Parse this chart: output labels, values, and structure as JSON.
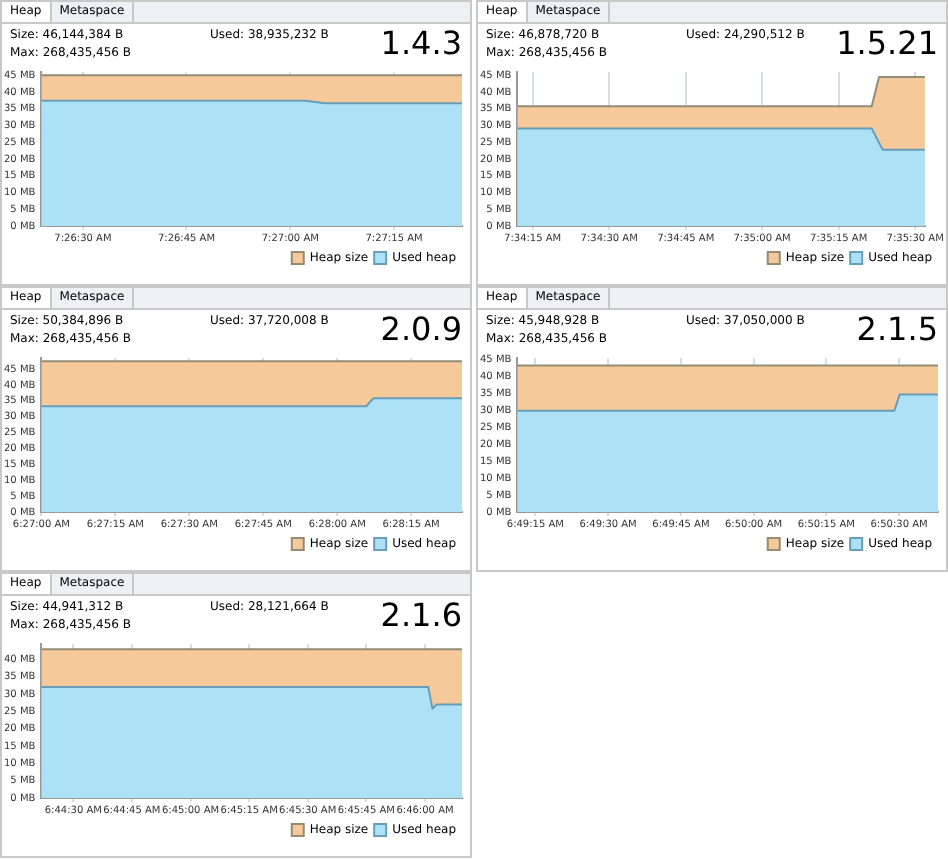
{
  "chart_data": [
    {
      "type": "area",
      "title": "1.4.3",
      "annotations": [
        "Heap",
        "Metaspace",
        "Size: 46,144,384 B",
        "Used: 38,935,232 B",
        "Max: 268,435,456 B"
      ],
      "series": [
        {
          "name": "Heap size",
          "color": "#f5c999",
          "x": [
            7.44,
            7.4569
          ],
          "values": [
            45,
            45
          ]
        },
        {
          "name": "Used heap",
          "color": "#ade1f6",
          "x": [
            7.44,
            7.4506,
            7.4514,
            7.4569
          ],
          "values": [
            37.4,
            37.4,
            36.7,
            36.7
          ]
        }
      ],
      "xlim": [
        7.44,
        7.4569
      ],
      "xticks": [
        {
          "value": 7.44167,
          "label": "7:26:30 AM"
        },
        {
          "value": 7.44583,
          "label": "7:26:45 AM"
        },
        {
          "value": 7.45,
          "label": "7:27:00 AM"
        },
        {
          "value": 7.45417,
          "label": "7:27:15 AM"
        }
      ],
      "ylim": [
        0,
        46
      ],
      "yticks": [
        {
          "value": 0,
          "label": "0 MB"
        },
        {
          "value": 5,
          "label": "5 MB"
        },
        {
          "value": 10,
          "label": "10 MB"
        },
        {
          "value": 15,
          "label": "15 MB"
        },
        {
          "value": 20,
          "label": "20 MB"
        },
        {
          "value": 25,
          "label": "25 MB"
        },
        {
          "value": 30,
          "label": "30 MB"
        },
        {
          "value": 35,
          "label": "35 MB"
        },
        {
          "value": 40,
          "label": "40 MB"
        },
        {
          "value": 45,
          "label": "45 MB"
        }
      ],
      "grid": "x",
      "legend": "bottom right"
    },
    {
      "type": "area",
      "title": "1.5.21",
      "annotations": [
        "Heap",
        "Metaspace",
        "Size: 46,878,720 B",
        "Used: 24,290,512 B",
        "Max: 268,435,456 B"
      ],
      "series": [
        {
          "name": "Heap size",
          "color": "#f5c999",
          "x": [
            7.57,
            7.5893,
            7.5897,
            7.5922
          ],
          "values": [
            35.8,
            35.8,
            44.5,
            44.5
          ]
        },
        {
          "name": "Used heap",
          "color": "#ade1f6",
          "x": [
            7.57,
            7.5893,
            7.5899,
            7.5922
          ],
          "values": [
            29.1,
            29.1,
            22.8,
            22.8
          ]
        }
      ],
      "xlim": [
        7.57,
        7.5922
      ],
      "xticks": [
        {
          "value": 7.57083,
          "label": "7:34:15 AM"
        },
        {
          "value": 7.575,
          "label": "7:34:30 AM"
        },
        {
          "value": 7.57917,
          "label": "7:34:45 AM"
        },
        {
          "value": 7.58333,
          "label": "7:35:00 AM"
        },
        {
          "value": 7.5875,
          "label": "7:35:15 AM"
        },
        {
          "value": 7.59167,
          "label": "7:35:30 AM"
        }
      ],
      "ylim": [
        0,
        46
      ],
      "yticks": [
        {
          "value": 0,
          "label": "0 MB"
        },
        {
          "value": 5,
          "label": "5 MB"
        },
        {
          "value": 10,
          "label": "10 MB"
        },
        {
          "value": 15,
          "label": "15 MB"
        },
        {
          "value": 20,
          "label": "20 MB"
        },
        {
          "value": 25,
          "label": "25 MB"
        },
        {
          "value": 30,
          "label": "30 MB"
        },
        {
          "value": 35,
          "label": "35 MB"
        },
        {
          "value": 40,
          "label": "40 MB"
        },
        {
          "value": 45,
          "label": "45 MB"
        }
      ],
      "grid": "x",
      "legend": "bottom right"
    },
    {
      "type": "area",
      "title": "2.0.9",
      "annotations": [
        "Heap",
        "Metaspace",
        "Size: 50,384,896 B",
        "Used: 37,720,008 B",
        "Max: 268,435,456 B"
      ],
      "series": [
        {
          "name": "Heap size",
          "color": "#f5c999",
          "x": [
            6.45,
            6.4737
          ],
          "values": [
            47.5,
            47.5
          ]
        },
        {
          "name": "Used heap",
          "color": "#ade1f6",
          "x": [
            6.45,
            6.4683,
            6.4687,
            6.4737
          ],
          "values": [
            33.3,
            33.3,
            35.8,
            35.8
          ]
        }
      ],
      "xlim": [
        6.45,
        6.4737
      ],
      "xticks": [
        {
          "value": 6.45,
          "label": "6:27:00 AM"
        },
        {
          "value": 6.45417,
          "label": "6:27:15 AM"
        },
        {
          "value": 6.45833,
          "label": "6:27:30 AM"
        },
        {
          "value": 6.4625,
          "label": "6:27:45 AM"
        },
        {
          "value": 6.46667,
          "label": "6:28:00 AM"
        },
        {
          "value": 6.47083,
          "label": "6:28:15 AM"
        }
      ],
      "ylim": [
        0,
        48.5
      ],
      "yticks": [
        {
          "value": 0,
          "label": "0 MB"
        },
        {
          "value": 5,
          "label": "5 MB"
        },
        {
          "value": 10,
          "label": "10 MB"
        },
        {
          "value": 15,
          "label": "15 MB"
        },
        {
          "value": 20,
          "label": "20 MB"
        },
        {
          "value": 25,
          "label": "25 MB"
        },
        {
          "value": 30,
          "label": "30 MB"
        },
        {
          "value": 35,
          "label": "35 MB"
        },
        {
          "value": 40,
          "label": "40 MB"
        },
        {
          "value": 45,
          "label": "45 MB"
        }
      ],
      "grid": "x",
      "legend": "bottom right"
    },
    {
      "type": "area",
      "title": "2.1.5",
      "annotations": [
        "Heap",
        "Metaspace",
        "Size: 45,948,928 B",
        "Used: 37,050,000 B",
        "Max: 268,435,456 B"
      ],
      "series": [
        {
          "name": "Heap size",
          "color": "#f5c999",
          "x": [
            6.8198,
            6.8439
          ],
          "values": [
            43.3,
            43.3
          ]
        },
        {
          "name": "Used heap",
          "color": "#ade1f6",
          "x": [
            6.8198,
            6.8414,
            6.8417,
            6.8439
          ],
          "values": [
            29.9,
            29.9,
            34.7,
            34.7
          ]
        }
      ],
      "xlim": [
        6.8198,
        6.8439
      ],
      "xticks": [
        {
          "value": 6.82083,
          "label": "6:49:15 AM"
        },
        {
          "value": 6.825,
          "label": "6:49:30 AM"
        },
        {
          "value": 6.82917,
          "label": "6:49:45 AM"
        },
        {
          "value": 6.83333,
          "label": "6:50:00 AM"
        },
        {
          "value": 6.8375,
          "label": "6:50:15 AM"
        },
        {
          "value": 6.84167,
          "label": "6:50:30 AM"
        }
      ],
      "ylim": [
        0,
        45.5
      ],
      "yticks": [
        {
          "value": 0,
          "label": "0 MB"
        },
        {
          "value": 5,
          "label": "5 MB"
        },
        {
          "value": 10,
          "label": "10 MB"
        },
        {
          "value": 15,
          "label": "15 MB"
        },
        {
          "value": 20,
          "label": "20 MB"
        },
        {
          "value": 25,
          "label": "25 MB"
        },
        {
          "value": 30,
          "label": "30 MB"
        },
        {
          "value": 35,
          "label": "35 MB"
        },
        {
          "value": 40,
          "label": "40 MB"
        },
        {
          "value": 45,
          "label": "45 MB"
        }
      ],
      "grid": "x",
      "legend": "bottom right"
    },
    {
      "type": "area",
      "title": "2.1.6",
      "annotations": [
        "Heap",
        "Metaspace",
        "Size: 44,941,312 B",
        "Used: 28,121,664 B",
        "Max: 268,435,456 B"
      ],
      "series": [
        {
          "name": "Heap size",
          "color": "#f5c999",
          "x": [
            6.7394,
            6.7693
          ],
          "values": [
            43,
            43
          ]
        },
        {
          "name": "Used heap",
          "color": "#ade1f6",
          "x": [
            6.7394,
            6.7669,
            6.7672,
            6.7675,
            6.7693
          ],
          "values": [
            32.1,
            32.1,
            25.8,
            27,
            27
          ]
        }
      ],
      "xlim": [
        6.7394,
        6.7693
      ],
      "xticks": [
        {
          "value": 6.74167,
          "label": "6:44:30 AM"
        },
        {
          "value": 6.74583,
          "label": "6:44:45 AM"
        },
        {
          "value": 6.75,
          "label": "6:45:00 AM"
        },
        {
          "value": 6.75417,
          "label": "6:45:15 AM"
        },
        {
          "value": 6.75833,
          "label": "6:45:30 AM"
        },
        {
          "value": 6.7625,
          "label": "6:45:45 AM"
        },
        {
          "value": 6.76667,
          "label": "6:46:00 AM"
        }
      ],
      "ylim": [
        0,
        44.5
      ],
      "yticks": [
        {
          "value": 0,
          "label": "0 MB"
        },
        {
          "value": 5,
          "label": "5 MB"
        },
        {
          "value": 10,
          "label": "10 MB"
        },
        {
          "value": 15,
          "label": "15 MB"
        },
        {
          "value": 20,
          "label": "20 MB"
        },
        {
          "value": 25,
          "label": "25 MB"
        },
        {
          "value": 30,
          "label": "30 MB"
        },
        {
          "value": 35,
          "label": "35 MB"
        },
        {
          "value": 40,
          "label": "40 MB"
        }
      ],
      "grid": "x",
      "legend": "bottom right"
    }
  ]
}
